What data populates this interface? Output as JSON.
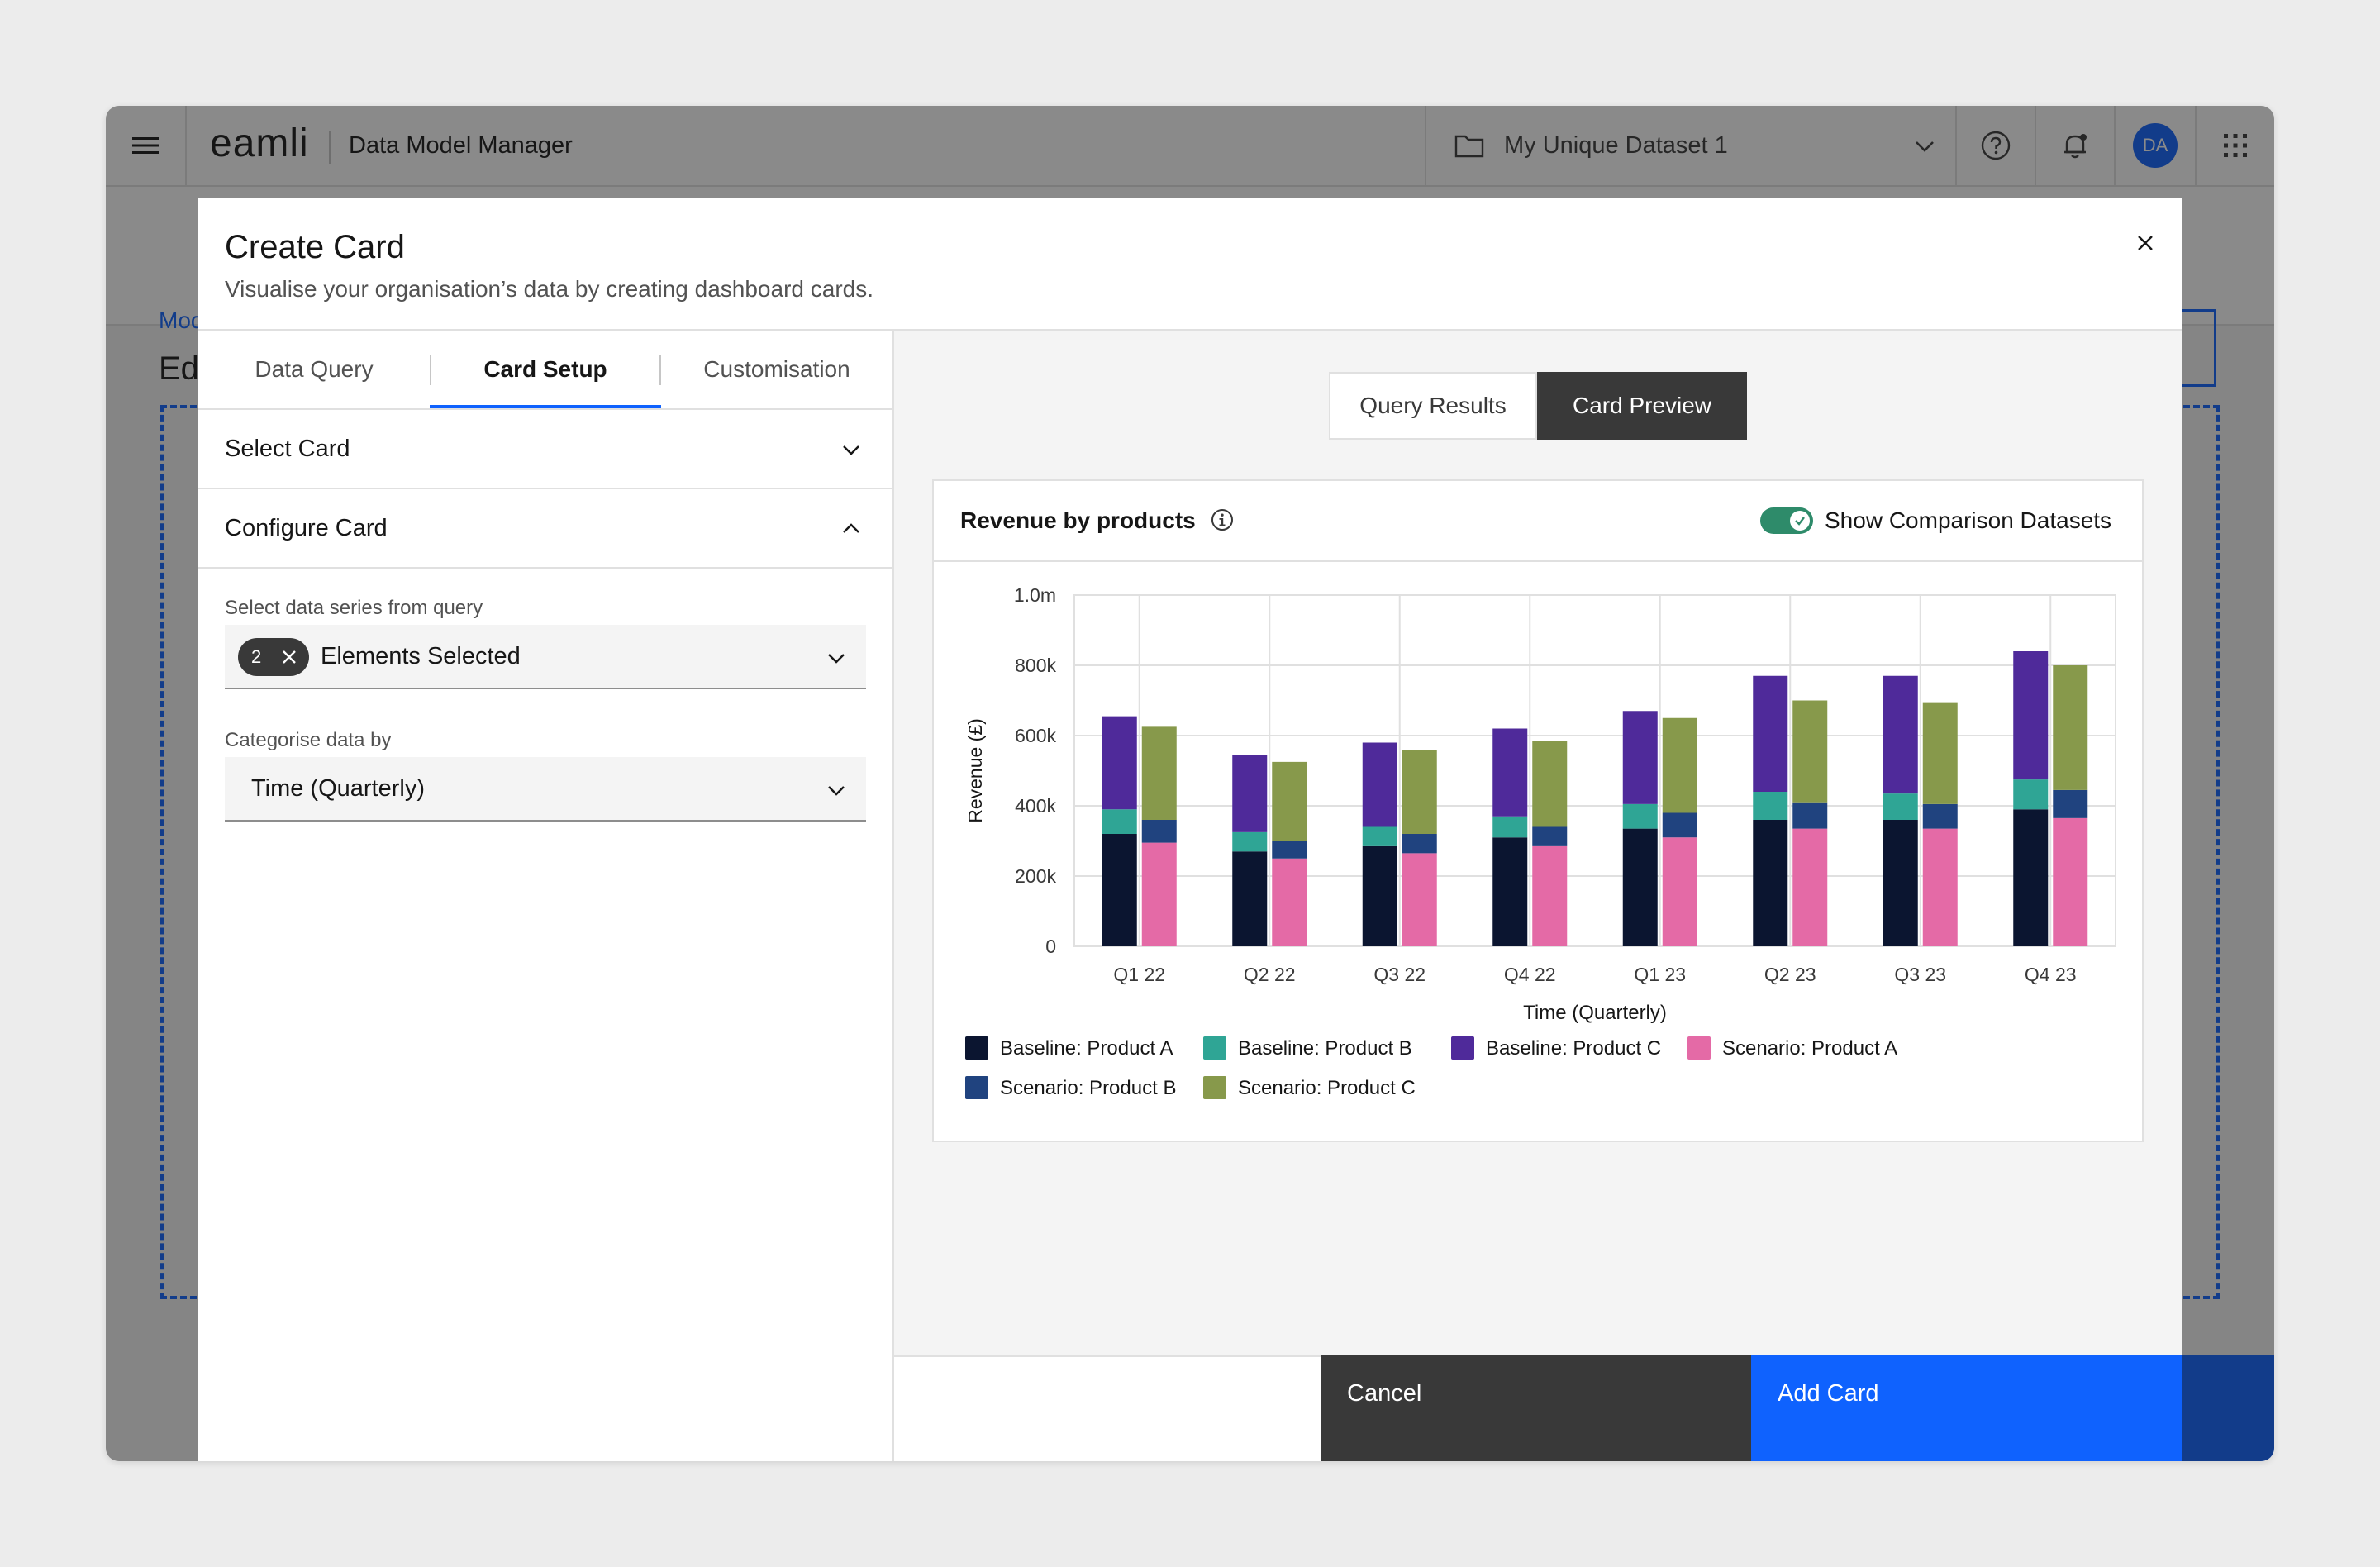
{
  "app": {
    "logo": "eamli",
    "name": "Data Model Manager",
    "dataset": "My Unique Dataset 1",
    "avatar_initials": "DA",
    "background_breadcrumb": "Mod",
    "background_title": "Ed"
  },
  "modal": {
    "title": "Create Card",
    "subtitle": "Visualise your organisation’s data by creating dashboard cards.",
    "tabs": [
      {
        "label": "Data Query",
        "active": false
      },
      {
        "label": "Card Setup",
        "active": true
      },
      {
        "label": "Customisation",
        "active": false
      }
    ],
    "accordion": {
      "select_card": "Select Card",
      "configure_card": "Configure Card"
    },
    "fields": {
      "series_label": "Select data series from query",
      "series_count": "2",
      "series_value": "Elements Selected",
      "category_label": "Categorise data by",
      "category_value": "Time (Quarterly)"
    },
    "view_switch": {
      "results": "Query Results",
      "preview": "Card Preview",
      "selected": "preview"
    },
    "card": {
      "title": "Revenue by products",
      "toggle_label": "Show Comparison Datasets",
      "toggle_on": true
    },
    "footer": {
      "cancel": "Cancel",
      "add": "Add Card"
    }
  },
  "colors": {
    "primary": "#0f62fe",
    "baseline_a": "#0b1530",
    "baseline_b": "#2fa595",
    "baseline_c": "#4f2a9a",
    "scenario_a": "#e46aa6",
    "scenario_b": "#20437f",
    "scenario_c": "#87994b"
  },
  "chart_data": {
    "type": "bar",
    "stacked": true,
    "grouped": true,
    "title": "Revenue by products",
    "xlabel": "Time (Quarterly)",
    "ylabel": "Revenue (£)",
    "ylim": [
      0,
      1000000
    ],
    "yticks": [
      {
        "value": 0,
        "label": "0"
      },
      {
        "value": 200000,
        "label": "200k"
      },
      {
        "value": 400000,
        "label": "400k"
      },
      {
        "value": 600000,
        "label": "600k"
      },
      {
        "value": 800000,
        "label": "800k"
      },
      {
        "value": 1000000,
        "label": "1.0m"
      }
    ],
    "categories": [
      "Q1 22",
      "Q2 22",
      "Q3 22",
      "Q4 22",
      "Q1 23",
      "Q2 23",
      "Q3 23",
      "Q4 23"
    ],
    "grid": true,
    "legend_position": "bottom",
    "series": [
      {
        "name": "Baseline: Product A",
        "stack": "Baseline",
        "color": "#0b1530",
        "values": [
          320000,
          270000,
          285000,
          310000,
          335000,
          360000,
          360000,
          390000
        ]
      },
      {
        "name": "Baseline: Product B",
        "stack": "Baseline",
        "color": "#2fa595",
        "values": [
          70000,
          55000,
          55000,
          60000,
          70000,
          80000,
          75000,
          85000
        ]
      },
      {
        "name": "Baseline: Product C",
        "stack": "Baseline",
        "color": "#4f2a9a",
        "values": [
          265000,
          220000,
          240000,
          250000,
          265000,
          330000,
          335000,
          365000
        ]
      },
      {
        "name": "Scenario: Product A",
        "stack": "Scenario",
        "color": "#e46aa6",
        "values": [
          295000,
          250000,
          265000,
          285000,
          310000,
          335000,
          335000,
          365000
        ]
      },
      {
        "name": "Scenario: Product B",
        "stack": "Scenario",
        "color": "#20437f",
        "values": [
          65000,
          50000,
          55000,
          55000,
          70000,
          75000,
          70000,
          80000
        ]
      },
      {
        "name": "Scenario: Product C",
        "stack": "Scenario",
        "color": "#87994b",
        "values": [
          265000,
          225000,
          240000,
          245000,
          270000,
          290000,
          290000,
          355000
        ]
      }
    ]
  }
}
